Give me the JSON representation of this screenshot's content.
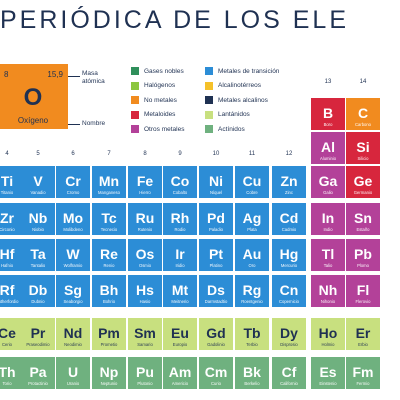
{
  "title": "PERIÓDICA DE LOS ELE",
  "key": {
    "number": "8",
    "mass": "15,9",
    "symbol": "O",
    "name": "Oxígeno",
    "mass_label": "Masa atómica",
    "name_label": "Nombre"
  },
  "legend": [
    {
      "label": "Gases nobles",
      "color": "#2f8f5b"
    },
    {
      "label": "Halógenos",
      "color": "#8cc63f"
    },
    {
      "label": "No metales",
      "color": "#f18b1f"
    },
    {
      "label": "Metaloides",
      "color": "#d7263d"
    },
    {
      "label": "Otros metales",
      "color": "#b34199"
    },
    {
      "label": "Metales de transición",
      "color": "#2c8dd6"
    },
    {
      "label": "Alcalinotérreos",
      "color": "#f5c12a"
    },
    {
      "label": "Metales alcalinos",
      "color": "#1f3152"
    },
    {
      "label": "Lantánidos",
      "color": "#c8e07f"
    },
    {
      "label": "Actínidos",
      "color": "#6fb17f"
    }
  ],
  "groups": [
    "4",
    "5",
    "6",
    "7",
    "8",
    "9",
    "10",
    "11",
    "12",
    "13",
    "14"
  ],
  "colors": {
    "transition": "#2c8dd6",
    "nonmetal": "#f18b1f",
    "metalloid": "#d7263d",
    "other": "#b34199",
    "lanthanide": "#c8e07f",
    "actinide": "#6fb17f"
  },
  "elements": [
    {
      "s": "B",
      "name": "Boro",
      "cls": "metalloid",
      "col": 9,
      "row": 0
    },
    {
      "s": "C",
      "name": "Carbono",
      "cls": "nonmetal",
      "col": 10,
      "row": 0
    },
    {
      "s": "Al",
      "name": "Aluminio",
      "cls": "other",
      "col": 9,
      "row": 1
    },
    {
      "s": "Si",
      "name": "Silicio",
      "cls": "metalloid",
      "col": 10,
      "row": 1
    },
    {
      "s": "Ti",
      "name": "Titanio",
      "cls": "transition",
      "col": 0,
      "row": 2
    },
    {
      "s": "V",
      "name": "Vanadio",
      "cls": "transition",
      "col": 1,
      "row": 2
    },
    {
      "s": "Cr",
      "name": "Cromo",
      "cls": "transition",
      "col": 2,
      "row": 2
    },
    {
      "s": "Mn",
      "name": "Manganeso",
      "cls": "transition",
      "col": 3,
      "row": 2
    },
    {
      "s": "Fe",
      "name": "Hierro",
      "cls": "transition",
      "col": 4,
      "row": 2
    },
    {
      "s": "Co",
      "name": "Cobalto",
      "cls": "transition",
      "col": 5,
      "row": 2
    },
    {
      "s": "Ni",
      "name": "Níquel",
      "cls": "transition",
      "col": 6,
      "row": 2
    },
    {
      "s": "Cu",
      "name": "Cobre",
      "cls": "transition",
      "col": 7,
      "row": 2
    },
    {
      "s": "Zn",
      "name": "Zinc",
      "cls": "transition",
      "col": 8,
      "row": 2
    },
    {
      "s": "Ga",
      "name": "Galio",
      "cls": "other",
      "col": 9,
      "row": 2
    },
    {
      "s": "Ge",
      "name": "Germanio",
      "cls": "metalloid",
      "col": 10,
      "row": 2
    },
    {
      "s": "Zr",
      "name": "Circonio",
      "cls": "transition",
      "col": 0,
      "row": 3
    },
    {
      "s": "Nb",
      "name": "Niobio",
      "cls": "transition",
      "col": 1,
      "row": 3
    },
    {
      "s": "Mo",
      "name": "Molibdeno",
      "cls": "transition",
      "col": 2,
      "row": 3
    },
    {
      "s": "Tc",
      "name": "Tecnecio",
      "cls": "transition",
      "col": 3,
      "row": 3
    },
    {
      "s": "Ru",
      "name": "Rutenio",
      "cls": "transition",
      "col": 4,
      "row": 3
    },
    {
      "s": "Rh",
      "name": "Rodio",
      "cls": "transition",
      "col": 5,
      "row": 3
    },
    {
      "s": "Pd",
      "name": "Paladio",
      "cls": "transition",
      "col": 6,
      "row": 3
    },
    {
      "s": "Ag",
      "name": "Plata",
      "cls": "transition",
      "col": 7,
      "row": 3
    },
    {
      "s": "Cd",
      "name": "Cadmio",
      "cls": "transition",
      "col": 8,
      "row": 3
    },
    {
      "s": "In",
      "name": "Indio",
      "cls": "other",
      "col": 9,
      "row": 3
    },
    {
      "s": "Sn",
      "name": "Estaño",
      "cls": "other",
      "col": 10,
      "row": 3
    },
    {
      "s": "Hf",
      "name": "Hafnio",
      "cls": "transition",
      "col": 0,
      "row": 4
    },
    {
      "s": "Ta",
      "name": "Tantalio",
      "cls": "transition",
      "col": 1,
      "row": 4
    },
    {
      "s": "W",
      "name": "Wolframio",
      "cls": "transition",
      "col": 2,
      "row": 4
    },
    {
      "s": "Re",
      "name": "Renio",
      "cls": "transition",
      "col": 3,
      "row": 4
    },
    {
      "s": "Os",
      "name": "Osmio",
      "cls": "transition",
      "col": 4,
      "row": 4
    },
    {
      "s": "Ir",
      "name": "Iridio",
      "cls": "transition",
      "col": 5,
      "row": 4
    },
    {
      "s": "Pt",
      "name": "Platino",
      "cls": "transition",
      "col": 6,
      "row": 4
    },
    {
      "s": "Au",
      "name": "Oro",
      "cls": "transition",
      "col": 7,
      "row": 4
    },
    {
      "s": "Hg",
      "name": "Mercurio",
      "cls": "transition",
      "col": 8,
      "row": 4
    },
    {
      "s": "Tl",
      "name": "Talio",
      "cls": "other",
      "col": 9,
      "row": 4
    },
    {
      "s": "Pb",
      "name": "Plomo",
      "cls": "other",
      "col": 10,
      "row": 4
    },
    {
      "s": "Rf",
      "name": "Rutherfordio",
      "cls": "transition",
      "col": 0,
      "row": 5
    },
    {
      "s": "Db",
      "name": "Dubnio",
      "cls": "transition",
      "col": 1,
      "row": 5
    },
    {
      "s": "Sg",
      "name": "Seaborgio",
      "cls": "transition",
      "col": 2,
      "row": 5
    },
    {
      "s": "Bh",
      "name": "Bohrio",
      "cls": "transition",
      "col": 3,
      "row": 5
    },
    {
      "s": "Hs",
      "name": "Hasio",
      "cls": "transition",
      "col": 4,
      "row": 5
    },
    {
      "s": "Mt",
      "name": "Meitnerio",
      "cls": "transition",
      "col": 5,
      "row": 5
    },
    {
      "s": "Ds",
      "name": "Darmstadtio",
      "cls": "transition",
      "col": 6,
      "row": 5
    },
    {
      "s": "Rg",
      "name": "Roentgenio",
      "cls": "transition",
      "col": 7,
      "row": 5
    },
    {
      "s": "Cn",
      "name": "Copernicio",
      "cls": "transition",
      "col": 8,
      "row": 5
    },
    {
      "s": "Nh",
      "name": "Nihonio",
      "cls": "other",
      "col": 9,
      "row": 5
    },
    {
      "s": "Fl",
      "name": "Flerovio",
      "cls": "other",
      "col": 10,
      "row": 5
    },
    {
      "s": "Ce",
      "name": "Cerio",
      "cls": "lanthanide",
      "col": 0,
      "row": 6
    },
    {
      "s": "Pr",
      "name": "Praseodimio",
      "cls": "lanthanide",
      "col": 1,
      "row": 6
    },
    {
      "s": "Nd",
      "name": "Neodimio",
      "cls": "lanthanide",
      "col": 2,
      "row": 6
    },
    {
      "s": "Pm",
      "name": "Prometio",
      "cls": "lanthanide",
      "col": 3,
      "row": 6
    },
    {
      "s": "Sm",
      "name": "Samario",
      "cls": "lanthanide",
      "col": 4,
      "row": 6
    },
    {
      "s": "Eu",
      "name": "Europio",
      "cls": "lanthanide",
      "col": 5,
      "row": 6
    },
    {
      "s": "Gd",
      "name": "Gadolinio",
      "cls": "lanthanide",
      "col": 6,
      "row": 6
    },
    {
      "s": "Tb",
      "name": "Terbio",
      "cls": "lanthanide",
      "col": 7,
      "row": 6
    },
    {
      "s": "Dy",
      "name": "Disprosio",
      "cls": "lanthanide",
      "col": 8,
      "row": 6
    },
    {
      "s": "Ho",
      "name": "Holmio",
      "cls": "lanthanide",
      "col": 9,
      "row": 6
    },
    {
      "s": "Er",
      "name": "Erbio",
      "cls": "lanthanide",
      "col": 10,
      "row": 6
    },
    {
      "s": "Th",
      "name": "Torio",
      "cls": "actinide",
      "col": 0,
      "row": 7
    },
    {
      "s": "Pa",
      "name": "Protactinio",
      "cls": "actinide",
      "col": 1,
      "row": 7
    },
    {
      "s": "U",
      "name": "Uranio",
      "cls": "actinide",
      "col": 2,
      "row": 7
    },
    {
      "s": "Np",
      "name": "Neptunio",
      "cls": "actinide",
      "col": 3,
      "row": 7
    },
    {
      "s": "Pu",
      "name": "Plutonio",
      "cls": "actinide",
      "col": 4,
      "row": 7
    },
    {
      "s": "Am",
      "name": "Americio",
      "cls": "actinide",
      "col": 5,
      "row": 7
    },
    {
      "s": "Cm",
      "name": "Curio",
      "cls": "actinide",
      "col": 6,
      "row": 7
    },
    {
      "s": "Bk",
      "name": "Berkelio",
      "cls": "actinide",
      "col": 7,
      "row": 7
    },
    {
      "s": "Cf",
      "name": "Californio",
      "cls": "actinide",
      "col": 8,
      "row": 7
    },
    {
      "s": "Es",
      "name": "Einstenio",
      "cls": "actinide",
      "col": 9,
      "row": 7
    },
    {
      "s": "Fm",
      "name": "Fermio",
      "cls": "actinide",
      "col": 10,
      "row": 7
    }
  ]
}
